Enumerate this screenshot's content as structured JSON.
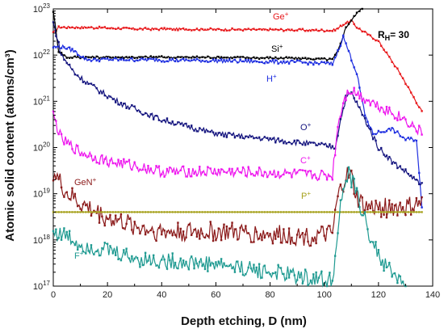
{
  "chart_data": {
    "type": "line",
    "title": "",
    "xlabel": "Depth etching, D (nm)",
    "ylabel": "Atomic solid content (atoms/cm³)",
    "xlim": [
      0,
      140
    ],
    "ylim": [
      1e+17,
      1e+23
    ],
    "y_scale": "log",
    "x_ticks": [
      0,
      20,
      40,
      60,
      80,
      100,
      120,
      140
    ],
    "y_tick_exponents": [
      17,
      18,
      19,
      20,
      21,
      22,
      23
    ],
    "legend": "none",
    "annotation": {
      "text": "R",
      "sub": "H",
      "suffix": "= 30"
    },
    "series": [
      {
        "name": "Ge",
        "sup": "+",
        "color": "#e8191c",
        "points": [
          [
            0,
            3e+22
          ],
          [
            2,
            4e+22
          ],
          [
            10,
            4e+22
          ],
          [
            30,
            3.7e+22
          ],
          [
            60,
            3.6e+22
          ],
          [
            90,
            3.5e+22
          ],
          [
            103,
            3.4e+22
          ],
          [
            105,
            3.8e+22
          ],
          [
            108,
            5e+22
          ],
          [
            110,
            5.5e+22
          ],
          [
            112,
            4e+22
          ],
          [
            120,
            2e+22
          ],
          [
            128,
            4e+21
          ],
          [
            136,
            6e+20
          ]
        ]
      },
      {
        "name": "Si",
        "sup": "+",
        "color": "#000000",
        "points": [
          [
            0,
            9e+22
          ],
          [
            2,
            1.2e+22
          ],
          [
            5,
            9e+21
          ],
          [
            20,
            9e+21
          ],
          [
            60,
            9e+21
          ],
          [
            90,
            8.5e+21
          ],
          [
            103,
            8e+21
          ],
          [
            105,
            1.2e+22
          ],
          [
            108,
            4e+22
          ],
          [
            112,
            8e+22
          ],
          [
            114,
            1.1e+23
          ]
        ]
      },
      {
        "name": "H",
        "sup": "+",
        "color": "#1e2ee0",
        "points": [
          [
            0,
            1.5e+22
          ],
          [
            4,
            1.5e+22
          ],
          [
            8,
            1.2e+22
          ],
          [
            12,
            8e+21
          ],
          [
            30,
            8e+21
          ],
          [
            60,
            7.5e+21
          ],
          [
            90,
            7e+21
          ],
          [
            103,
            6.5e+21
          ],
          [
            105,
            1.2e+22
          ],
          [
            107,
            2.5e+22
          ],
          [
            109,
            1.2e+22
          ],
          [
            112,
            4e+21
          ],
          [
            115,
            5e+20
          ],
          [
            118,
            2e+20
          ],
          [
            125,
            2.5e+20
          ],
          [
            130,
            1.5e+20
          ],
          [
            134,
            1.5e+20
          ],
          [
            136,
            5e+18
          ]
        ]
      },
      {
        "name": "O",
        "sup": "+",
        "color": "#15157f",
        "points": [
          [
            0,
            5e+22
          ],
          [
            3,
            1e+22
          ],
          [
            8,
            4e+21
          ],
          [
            15,
            2e+21
          ],
          [
            25,
            9e+20
          ],
          [
            40,
            4e+20
          ],
          [
            60,
            2e+20
          ],
          [
            80,
            1.5e+20
          ],
          [
            90,
            1.3e+20
          ],
          [
            100,
            1.1e+20
          ],
          [
            104,
            1e+20
          ],
          [
            106,
            4e+20
          ],
          [
            108,
            1.2e+21
          ],
          [
            110,
            1.5e+21
          ],
          [
            112,
            9e+20
          ],
          [
            115,
            4e+20
          ],
          [
            120,
            1e+20
          ],
          [
            125,
            5e+19
          ],
          [
            130,
            3e+19
          ],
          [
            136,
            1.5e+19
          ]
        ]
      },
      {
        "name": "C",
        "sup": "+",
        "color": "#ee18ee",
        "points": [
          [
            0,
            5e+20
          ],
          [
            3,
            1.5e+20
          ],
          [
            10,
            8e+19
          ],
          [
            20,
            5e+19
          ],
          [
            30,
            4e+19
          ],
          [
            40,
            3e+19
          ],
          [
            60,
            3e+19
          ],
          [
            80,
            2.8e+19
          ],
          [
            95,
            2.5e+19
          ],
          [
            103,
            2.5e+19
          ],
          [
            105,
            3e+20
          ],
          [
            107,
            1e+21
          ],
          [
            109,
            1.8e+21
          ],
          [
            112,
            1.5e+21
          ],
          [
            120,
            8e+20
          ],
          [
            130,
            4e+20
          ],
          [
            136,
            2e+20
          ]
        ]
      },
      {
        "name": "GeN",
        "sup": "+",
        "color": "#8b1a1a",
        "points": [
          [
            0,
            3e+19
          ],
          [
            5,
            1e+19
          ],
          [
            10,
            6e+18
          ],
          [
            20,
            3e+18
          ],
          [
            30,
            2e+18
          ],
          [
            40,
            1.5e+18
          ],
          [
            60,
            1.5e+18
          ],
          [
            80,
            1.3e+18
          ],
          [
            95,
            1.2e+18
          ],
          [
            103,
            1.3e+18
          ],
          [
            105,
            8e+18
          ],
          [
            108,
            2.5e+19
          ],
          [
            110,
            2.2e+19
          ],
          [
            112,
            8e+18
          ],
          [
            115,
            5e+18
          ],
          [
            120,
            5e+18
          ],
          [
            130,
            5e+18
          ],
          [
            136,
            6e+18
          ]
        ]
      },
      {
        "name": "P",
        "sup": "+",
        "color": "#a7a21e",
        "points": [
          [
            0,
            4e+18
          ],
          [
            20,
            4e+18
          ],
          [
            40,
            4e+18
          ],
          [
            60,
            4e+18
          ],
          [
            80,
            4e+18
          ],
          [
            100,
            4e+18
          ],
          [
            120,
            4e+18
          ],
          [
            136,
            4e+18
          ]
        ]
      },
      {
        "name": "F",
        "sup": "+",
        "color": "#1f9a91",
        "points": [
          [
            0,
            1.5e+18
          ],
          [
            5,
            1.2e+18
          ],
          [
            10,
            8e+17
          ],
          [
            20,
            6e+17
          ],
          [
            30,
            4e+17
          ],
          [
            40,
            3.5e+17
          ],
          [
            60,
            3e+17
          ],
          [
            80,
            2e+17
          ],
          [
            95,
            1.5e+17
          ],
          [
            103,
            1.3e+17
          ],
          [
            105,
            2e+18
          ],
          [
            107,
            1.2e+19
          ],
          [
            109,
            2.5e+19
          ],
          [
            111,
            1.5e+19
          ],
          [
            114,
            4e+18
          ],
          [
            118,
            8e+17
          ],
          [
            122,
            3e+17
          ],
          [
            127,
            1.5e+17
          ],
          [
            130,
            1.1e+17
          ]
        ]
      }
    ]
  }
}
